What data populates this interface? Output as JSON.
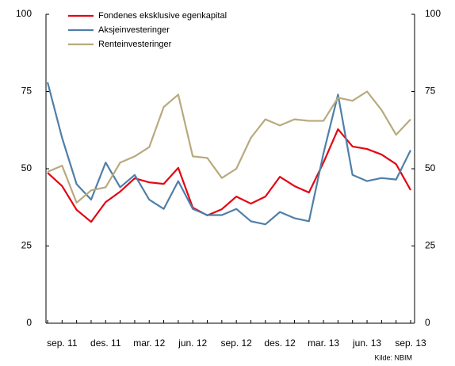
{
  "chart_data": {
    "type": "line",
    "categories": [
      null,
      "sep. 11",
      null,
      null,
      "des. 11",
      null,
      null,
      "mar. 12",
      null,
      null,
      "jun. 12",
      null,
      null,
      "sep. 12",
      null,
      null,
      "des. 12",
      null,
      null,
      "mar. 13",
      null,
      null,
      "jun. 13",
      null,
      null,
      "sep. 13"
    ],
    "series": [
      {
        "name": "Fondenes eksklusive egenkapital",
        "color": "#e30613",
        "values": [
          48.7,
          44.4,
          36.7,
          32.8,
          39.2,
          42.6,
          46.9,
          45.6,
          45.1,
          50.3,
          37.4,
          34.9,
          36.9,
          41.0,
          38.7,
          41.0,
          47.4,
          44.4,
          42.3,
          52.0,
          62.8,
          57.2,
          56.4,
          54.6,
          51.5,
          43.1
        ]
      },
      {
        "name": "Aksjeinvesteringer",
        "color": "#4f7fa8",
        "values": [
          78,
          60,
          45,
          40,
          52,
          44,
          48,
          40,
          37,
          46,
          37,
          35,
          35,
          37,
          33,
          32,
          36,
          34,
          33,
          55,
          74,
          48,
          46,
          47,
          46.5,
          56
        ]
      },
      {
        "name": "Renteinvesteringer",
        "color": "#b8aa7e",
        "values": [
          49,
          51,
          39,
          43,
          44,
          52,
          54,
          57,
          70,
          74,
          54,
          53.5,
          47,
          50,
          60,
          66,
          64,
          66,
          65.5,
          65.5,
          73,
          72,
          75,
          69,
          61,
          66
        ]
      }
    ],
    "ylim": [
      0,
      100
    ],
    "yticks": [
      0,
      25,
      50,
      75,
      100
    ],
    "y2lim": [
      0,
      100
    ],
    "y2ticks": [
      0,
      25,
      50,
      75,
      100
    ],
    "source": "Kilde: NBIM"
  }
}
